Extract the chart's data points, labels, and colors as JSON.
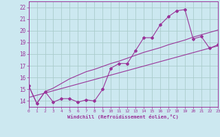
{
  "xlabel": "Windchill (Refroidissement éolien,°C)",
  "bg_color": "#cce8f0",
  "grid_color": "#aacccc",
  "line_color": "#993399",
  "xlim": [
    0,
    23
  ],
  "ylim": [
    13.5,
    22.5
  ],
  "xticks": [
    0,
    1,
    2,
    3,
    4,
    5,
    6,
    7,
    8,
    9,
    10,
    11,
    12,
    13,
    14,
    15,
    16,
    17,
    18,
    19,
    20,
    21,
    22,
    23
  ],
  "yticks": [
    14,
    15,
    16,
    17,
    18,
    19,
    20,
    21,
    22
  ],
  "line1_x": [
    0,
    1,
    2,
    3,
    4,
    5,
    6,
    7,
    8,
    9,
    10,
    11,
    12,
    13,
    14,
    15,
    16,
    17,
    18,
    19,
    20,
    21,
    22,
    23
  ],
  "line1_y": [
    15.3,
    13.8,
    14.8,
    13.9,
    14.2,
    14.2,
    13.9,
    14.1,
    14.0,
    15.0,
    16.8,
    17.2,
    17.2,
    18.3,
    19.4,
    19.4,
    20.5,
    21.2,
    21.7,
    21.8,
    19.3,
    19.5,
    18.5,
    18.8
  ],
  "line2_x": [
    0,
    1,
    2,
    3,
    4,
    5,
    6,
    7,
    8,
    9,
    10,
    11,
    12,
    13,
    14,
    15,
    16,
    17,
    18,
    19,
    20,
    21,
    22,
    23
  ],
  "line2_y": [
    15.3,
    13.8,
    14.8,
    15.1,
    15.5,
    15.9,
    16.2,
    16.5,
    16.7,
    16.95,
    17.2,
    17.4,
    17.65,
    17.9,
    18.15,
    18.35,
    18.55,
    18.8,
    19.0,
    19.2,
    19.45,
    19.65,
    19.85,
    20.05
  ],
  "line3_x": [
    0,
    23
  ],
  "line3_y": [
    14.3,
    18.7
  ]
}
